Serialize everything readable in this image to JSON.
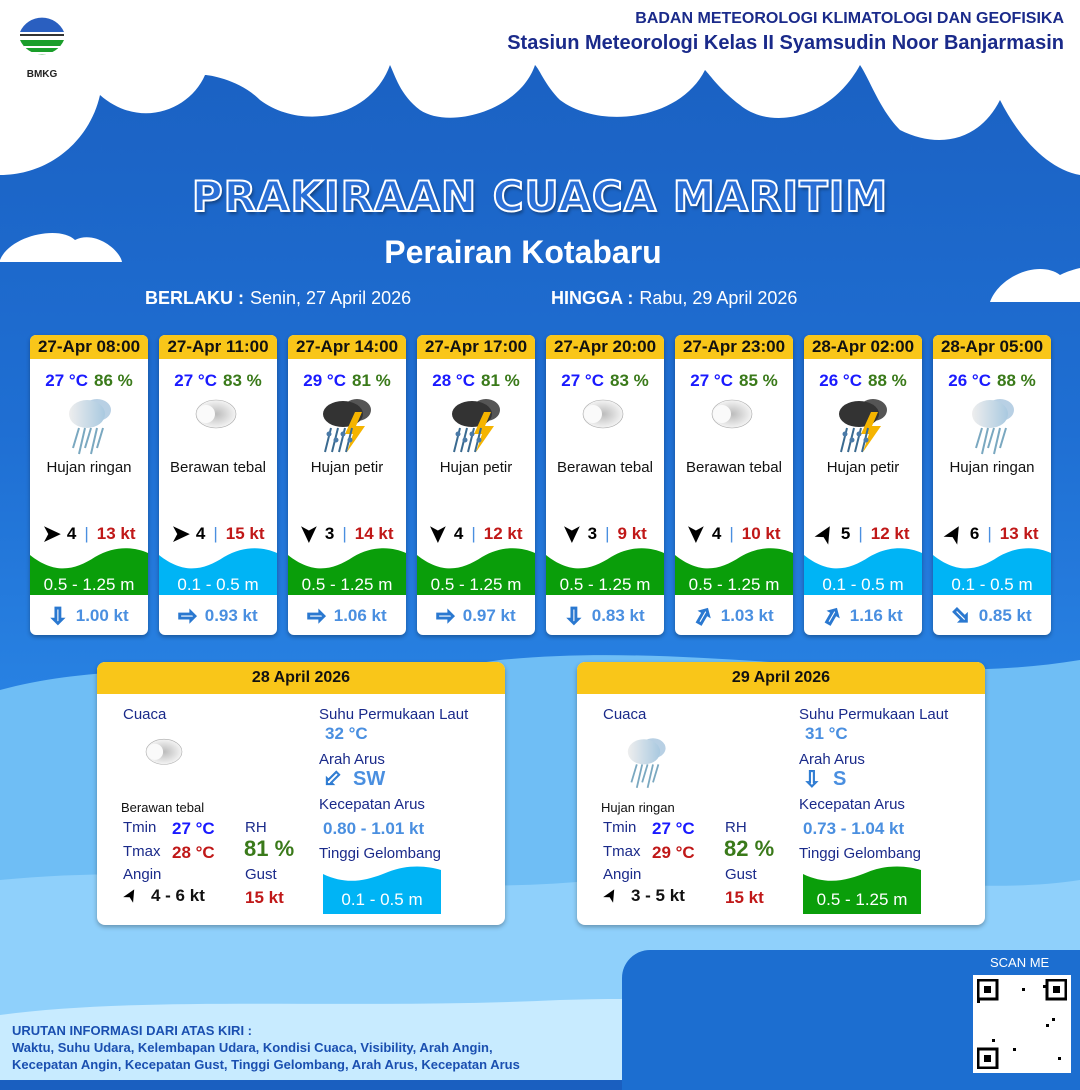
{
  "header": {
    "org": "BADAN METEOROLOGI KLIMATOLOGI DAN GEOFISIKA",
    "station": "Stasiun Meteorologi Kelas II Syamsudin Noor Banjarmasin",
    "logo_text": "BMKG",
    "title": "PRAKIRAAN CUACA MARITIM",
    "subtitle": "Perairan Kotabaru",
    "valid_from_label": "BERLAKU :",
    "valid_from": "Senin, 27 April 2026",
    "valid_to_label": "HINGGA :",
    "valid_to": "Rabu, 29 April 2026"
  },
  "colors": {
    "header_yellow": "#f9c619",
    "wave_green": "#0a9e0a",
    "wave_cyan": "#00b4f5",
    "temp_blue": "#1a1aff",
    "rh_green": "#3a7a1a",
    "gust_red": "#c01818"
  },
  "forecasts": [
    {
      "time": "27-Apr 08:00",
      "temp": "27 °C",
      "rh": "86 %",
      "icon": "light-rain",
      "weather": "Hujan ringan",
      "wind_dir": "E",
      "wind": "4",
      "gust": "13 kt",
      "wave": "0.5 - 1.25 m",
      "wave_class": "green",
      "current_dir": "S",
      "current": "1.00 kt"
    },
    {
      "time": "27-Apr 11:00",
      "temp": "27 °C",
      "rh": "83 %",
      "icon": "cloudy",
      "weather": "Berawan tebal",
      "wind_dir": "E",
      "wind": "4",
      "gust": "15 kt",
      "wave": "0.1 - 0.5 m",
      "wave_class": "cyan",
      "current_dir": "E",
      "current": "0.93 kt"
    },
    {
      "time": "27-Apr 14:00",
      "temp": "29 °C",
      "rh": "81 %",
      "icon": "thunderstorm",
      "weather": "Hujan petir",
      "wind_dir": "S",
      "wind": "3",
      "gust": "14 kt",
      "wave": "0.5 - 1.25 m",
      "wave_class": "green",
      "current_dir": "E",
      "current": "1.06 kt"
    },
    {
      "time": "27-Apr 17:00",
      "temp": "28 °C",
      "rh": "81 %",
      "icon": "thunderstorm",
      "weather": "Hujan petir",
      "wind_dir": "S",
      "wind": "4",
      "gust": "12 kt",
      "wave": "0.5 - 1.25 m",
      "wave_class": "green",
      "current_dir": "E",
      "current": "0.97 kt"
    },
    {
      "time": "27-Apr 20:00",
      "temp": "27 °C",
      "rh": "83 %",
      "icon": "cloudy",
      "weather": "Berawan tebal",
      "wind_dir": "S",
      "wind": "3",
      "gust": "9 kt",
      "wave": "0.5 - 1.25 m",
      "wave_class": "green",
      "current_dir": "S",
      "current": "0.83 kt"
    },
    {
      "time": "27-Apr 23:00",
      "temp": "27 °C",
      "rh": "85 %",
      "icon": "cloudy",
      "weather": "Berawan tebal",
      "wind_dir": "S",
      "wind": "4",
      "gust": "10 kt",
      "wave": "0.5 - 1.25 m",
      "wave_class": "green",
      "current_dir": "NE",
      "current": "1.03 kt"
    },
    {
      "time": "28-Apr 02:00",
      "temp": "26 °C",
      "rh": "88 %",
      "icon": "thunderstorm",
      "weather": "Hujan petir",
      "wind_dir": "NE",
      "wind": "5",
      "gust": "12 kt",
      "wave": "0.1 - 0.5 m",
      "wave_class": "cyan",
      "current_dir": "NE",
      "current": "1.16 kt"
    },
    {
      "time": "28-Apr 05:00",
      "temp": "26 °C",
      "rh": "88 %",
      "icon": "light-rain",
      "weather": "Hujan ringan",
      "wind_dir": "NE",
      "wind": "6",
      "gust": "13 kt",
      "wave": "0.1 - 0.5 m",
      "wave_class": "cyan",
      "current_dir": "SE",
      "current": "0.85 kt"
    }
  ],
  "labels": {
    "cuaca": "Cuaca",
    "sst": "Suhu Permukaan Laut",
    "arah_arus": "Arah Arus",
    "kec_arus": "Kecepatan Arus",
    "gelombang": "Tinggi Gelombang",
    "tmin": "Tmin",
    "tmax": "Tmax",
    "rh": "RH",
    "angin": "Angin",
    "gust": "Gust"
  },
  "daily": [
    {
      "date": "28 April 2026",
      "icon": "cloudy",
      "weather": "Berawan tebal",
      "tmin": "27 °C",
      "tmax": "28 °C",
      "rh": "81 %",
      "wind_dir": "NE",
      "wind": "4  - 6 kt",
      "gust": "15 kt",
      "sst": "32 °C",
      "current_dir": "SW",
      "current_dir_label": "SW",
      "current": "0.80  - 1.01 kt",
      "wave": "0.1 - 0.5 m",
      "wave_class": "cyan"
    },
    {
      "date": "29 April 2026",
      "icon": "light-rain",
      "weather": "Hujan ringan",
      "tmin": "27 °C",
      "tmax": "29 °C",
      "rh": "82 %",
      "wind_dir": "NE",
      "wind": "3  - 5 kt",
      "gust": "15 kt",
      "sst": "31 °C",
      "current_dir": "S",
      "current_dir_label": "S",
      "current": "0.73  - 1.04 kt",
      "wave": "0.5 - 1.25 m",
      "wave_class": "green"
    }
  ],
  "footer": {
    "heading": "URUTAN INFORMASI DARI ATAS KIRI :",
    "line1": "Waktu, Suhu Udara, Kelembapan Udara, Kondisi Cuaca, Visibility, Arah Angin,",
    "line2": "Kecepatan Angin, Kecepatan Gust, Tinggi Gelombang, Arah Arus, Kecepatan Arus",
    "scan": "SCAN ME"
  }
}
